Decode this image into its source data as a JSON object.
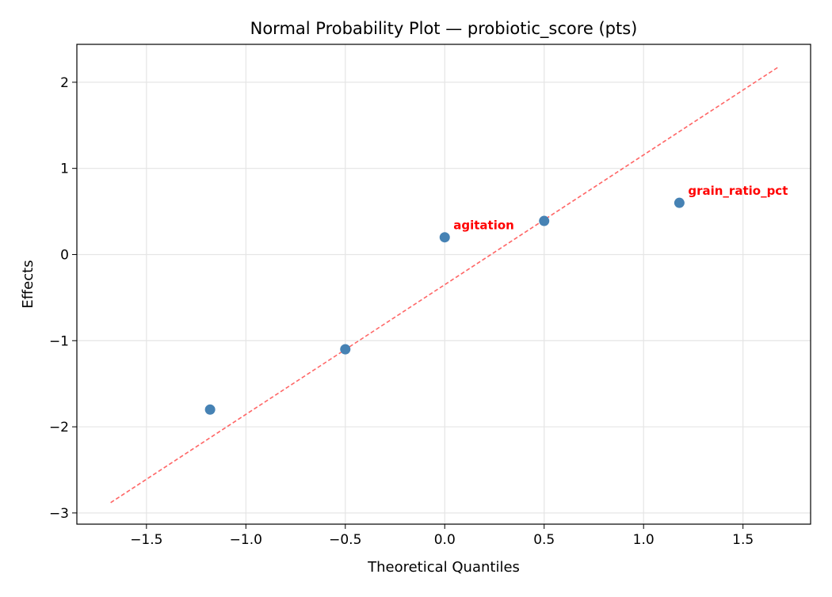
{
  "chart_data": {
    "type": "scatter",
    "title": "Normal Probability Plot — probiotic_score (pts)",
    "xlabel": "Theoretical Quantiles",
    "ylabel": "Effects",
    "xlim": [
      -1.85,
      1.84
    ],
    "ylim": [
      -3.13,
      2.44
    ],
    "grid": true,
    "xticks": [
      -1.5,
      -1.0,
      -0.5,
      0.0,
      0.5,
      1.0,
      1.5
    ],
    "xtick_labels": [
      "−1.5",
      "−1.0",
      "−0.5",
      "0.0",
      "0.5",
      "1.0",
      "1.5"
    ],
    "yticks": [
      -3,
      -2,
      -1,
      0,
      1,
      2
    ],
    "ytick_labels": [
      "−3",
      "−2",
      "−1",
      "0",
      "1",
      "2"
    ],
    "points": [
      {
        "x": -1.18,
        "y": -1.8,
        "label": ""
      },
      {
        "x": -0.5,
        "y": -1.1,
        "label": ""
      },
      {
        "x": 0.0,
        "y": 0.2,
        "label": "agitation"
      },
      {
        "x": 0.5,
        "y": 0.39,
        "label": ""
      },
      {
        "x": 1.18,
        "y": 0.6,
        "label": "grain_ratio_pct"
      }
    ],
    "reference_line": {
      "x": [
        -1.68,
        1.68
      ],
      "y": [
        -2.88,
        2.18
      ]
    },
    "colors": {
      "points": "#4682b4",
      "line": "#ff6666",
      "labels": "#ff0000"
    }
  }
}
